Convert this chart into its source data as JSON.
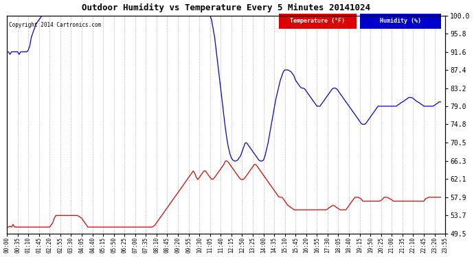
{
  "title": "Outdoor Humidity vs Temperature Every 5 Minutes 20141024",
  "copyright": "Copyright 2014 Cartronics.com",
  "background_color": "#ffffff",
  "grid_color": "#aaaaaa",
  "temp_color": "#dd0000",
  "humidity_color": "#0000cc",
  "legend_temp_bg": "#dd0000",
  "legend_humidity_bg": "#0000cc",
  "legend_temp_label": "Temperature (°F)",
  "legend_humidity_label": "Humidity (%)",
  "ylim": [
    49.5,
    100.0
  ],
  "yticks": [
    49.5,
    53.7,
    57.9,
    62.1,
    66.3,
    70.5,
    74.8,
    79.0,
    83.2,
    87.4,
    91.6,
    95.8,
    100.0
  ],
  "humidity_data": [
    91.6,
    91.6,
    91.0,
    91.6,
    91.6,
    91.6,
    91.6,
    91.6,
    91.0,
    91.6,
    91.6,
    91.6,
    91.6,
    91.6,
    92.0,
    93.0,
    95.0,
    96.0,
    97.0,
    98.0,
    98.5,
    99.0,
    99.5,
    100.0,
    100.0,
    100.0,
    100.0,
    100.0,
    100.0,
    100.0,
    100.0,
    100.0,
    100.0,
    100.0,
    100.0,
    100.0,
    100.0,
    100.0,
    100.0,
    100.0,
    100.0,
    100.0,
    100.0,
    100.0,
    100.0,
    100.0,
    100.0,
    100.0,
    100.0,
    100.0,
    100.0,
    100.0,
    100.0,
    100.0,
    100.0,
    100.0,
    100.0,
    100.0,
    100.0,
    100.0,
    100.0,
    100.0,
    100.0,
    100.0,
    100.0,
    100.0,
    100.0,
    100.0,
    100.0,
    100.0,
    100.0,
    100.0,
    100.0,
    100.0,
    100.0,
    100.0,
    100.0,
    100.0,
    100.0,
    100.0,
    100.0,
    100.0,
    100.0,
    100.0,
    100.0,
    100.0,
    100.0,
    100.0,
    100.0,
    100.0,
    100.0,
    100.0,
    100.0,
    100.0,
    100.0,
    100.0,
    100.0,
    100.0,
    100.0,
    100.0,
    100.0,
    100.0,
    100.0,
    100.0,
    100.0,
    100.0,
    100.0,
    100.0,
    100.0,
    100.0,
    100.0,
    100.0,
    100.0,
    100.0,
    100.0,
    100.0,
    100.0,
    100.0,
    100.0,
    100.0,
    100.0,
    100.0,
    100.0,
    100.0,
    100.0,
    100.0,
    100.0,
    100.0,
    100.0,
    100.0,
    100.0,
    100.0,
    100.0,
    100.0,
    99.0,
    97.0,
    95.0,
    92.0,
    89.0,
    86.0,
    83.0,
    80.0,
    77.0,
    74.0,
    71.5,
    69.5,
    68.0,
    67.0,
    66.5,
    66.3,
    66.3,
    66.5,
    67.0,
    67.5,
    68.5,
    69.5,
    70.5,
    70.5,
    70.0,
    69.5,
    69.0,
    68.5,
    68.0,
    67.5,
    67.0,
    66.5,
    66.3,
    66.3,
    66.5,
    67.5,
    69.0,
    70.5,
    72.5,
    74.5,
    76.5,
    78.5,
    80.5,
    82.0,
    83.5,
    85.0,
    86.0,
    87.0,
    87.4,
    87.4,
    87.4,
    87.2,
    87.0,
    86.5,
    86.0,
    85.0,
    84.5,
    84.0,
    83.5,
    83.2,
    83.2,
    83.0,
    82.5,
    82.0,
    81.5,
    81.0,
    80.5,
    80.0,
    79.5,
    79.0,
    79.0,
    79.0,
    79.5,
    80.0,
    80.5,
    81.0,
    81.5,
    82.0,
    82.5,
    83.0,
    83.2,
    83.2,
    83.0,
    82.5,
    82.0,
    81.5,
    81.0,
    80.5,
    80.0,
    79.5,
    79.0,
    78.5,
    78.0,
    77.5,
    77.0,
    76.5,
    76.0,
    75.5,
    75.0,
    74.8,
    74.8,
    75.0,
    75.5,
    76.0,
    76.5,
    77.0,
    77.5,
    78.0,
    78.5,
    79.0,
    79.0,
    79.0,
    79.0,
    79.0,
    79.0,
    79.0,
    79.0,
    79.0,
    79.0,
    79.0,
    79.0,
    79.0,
    79.3,
    79.5,
    79.8,
    80.0,
    80.2,
    80.5,
    80.7,
    81.0,
    81.0,
    81.0,
    80.8,
    80.5,
    80.2,
    80.0,
    79.8,
    79.5,
    79.3,
    79.0,
    79.0,
    79.0,
    79.0,
    79.0,
    79.0,
    79.0,
    79.2,
    79.5,
    79.7,
    80.0,
    80.0
  ],
  "temp_data": [
    51.0,
    51.0,
    51.2,
    51.0,
    51.6,
    51.0,
    51.0,
    51.0,
    51.0,
    51.0,
    51.0,
    51.0,
    51.0,
    51.0,
    51.0,
    51.0,
    51.0,
    51.0,
    51.0,
    51.0,
    51.0,
    51.0,
    51.0,
    51.0,
    51.0,
    51.0,
    51.0,
    51.0,
    51.0,
    51.5,
    52.0,
    53.0,
    53.7,
    53.7,
    53.7,
    53.7,
    53.7,
    53.7,
    53.7,
    53.7,
    53.7,
    53.7,
    53.7,
    53.7,
    53.7,
    53.7,
    53.7,
    53.5,
    53.3,
    53.0,
    52.5,
    52.0,
    51.5,
    51.0,
    51.0,
    51.0,
    51.0,
    51.0,
    51.0,
    51.0,
    51.0,
    51.0,
    51.0,
    51.0,
    51.0,
    51.0,
    51.0,
    51.0,
    51.0,
    51.0,
    51.0,
    51.0,
    51.0,
    51.0,
    51.0,
    51.0,
    51.0,
    51.0,
    51.0,
    51.0,
    51.0,
    51.0,
    51.0,
    51.0,
    51.0,
    51.0,
    51.0,
    51.0,
    51.0,
    51.0,
    51.0,
    51.0,
    51.0,
    51.0,
    51.0,
    51.0,
    51.2,
    51.5,
    52.0,
    52.5,
    53.0,
    53.5,
    54.0,
    54.5,
    55.0,
    55.5,
    56.0,
    56.5,
    57.0,
    57.5,
    58.0,
    58.5,
    59.0,
    59.5,
    60.0,
    60.5,
    61.0,
    61.5,
    62.0,
    62.5,
    63.0,
    63.5,
    64.0,
    63.5,
    62.5,
    62.0,
    62.5,
    63.0,
    63.5,
    64.0,
    64.0,
    63.5,
    63.0,
    62.5,
    62.1,
    62.1,
    62.5,
    63.0,
    63.5,
    64.0,
    64.5,
    65.0,
    65.5,
    66.3,
    66.3,
    66.0,
    65.5,
    65.0,
    64.5,
    64.0,
    63.5,
    63.0,
    62.5,
    62.1,
    62.0,
    62.1,
    62.5,
    63.0,
    63.5,
    64.0,
    64.5,
    65.0,
    65.5,
    65.5,
    65.0,
    64.5,
    64.0,
    63.5,
    63.0,
    62.5,
    62.0,
    61.5,
    61.0,
    60.5,
    60.0,
    59.5,
    59.0,
    58.5,
    58.0,
    57.9,
    57.9,
    57.5,
    57.0,
    56.5,
    56.0,
    55.8,
    55.5,
    55.3,
    55.0,
    55.0,
    55.0,
    55.0,
    55.0,
    55.0,
    55.0,
    55.0,
    55.0,
    55.0,
    55.0,
    55.0,
    55.0,
    55.0,
    55.0,
    55.0,
    55.0,
    55.0,
    55.0,
    55.0,
    55.0,
    55.0,
    55.2,
    55.5,
    55.7,
    56.0,
    56.0,
    55.8,
    55.5,
    55.3,
    55.0,
    55.0,
    55.0,
    55.0,
    55.0,
    55.5,
    56.0,
    56.5,
    57.0,
    57.5,
    57.9,
    57.9,
    57.9,
    57.7,
    57.5,
    57.0,
    57.0,
    57.0,
    57.0,
    57.0,
    57.0,
    57.0,
    57.0,
    57.0,
    57.0,
    57.0,
    57.0,
    57.2,
    57.5,
    57.9,
    57.9,
    57.9,
    57.7,
    57.5,
    57.3,
    57.0,
    57.0,
    57.0,
    57.0,
    57.0,
    57.0,
    57.0,
    57.0,
    57.0,
    57.0,
    57.0,
    57.0,
    57.0,
    57.0,
    57.0,
    57.0,
    57.0,
    57.0,
    57.0,
    57.0,
    57.0,
    57.5,
    57.7,
    57.9,
    57.9,
    57.9,
    57.9,
    57.9,
    57.9,
    57.9,
    57.9,
    57.9
  ]
}
